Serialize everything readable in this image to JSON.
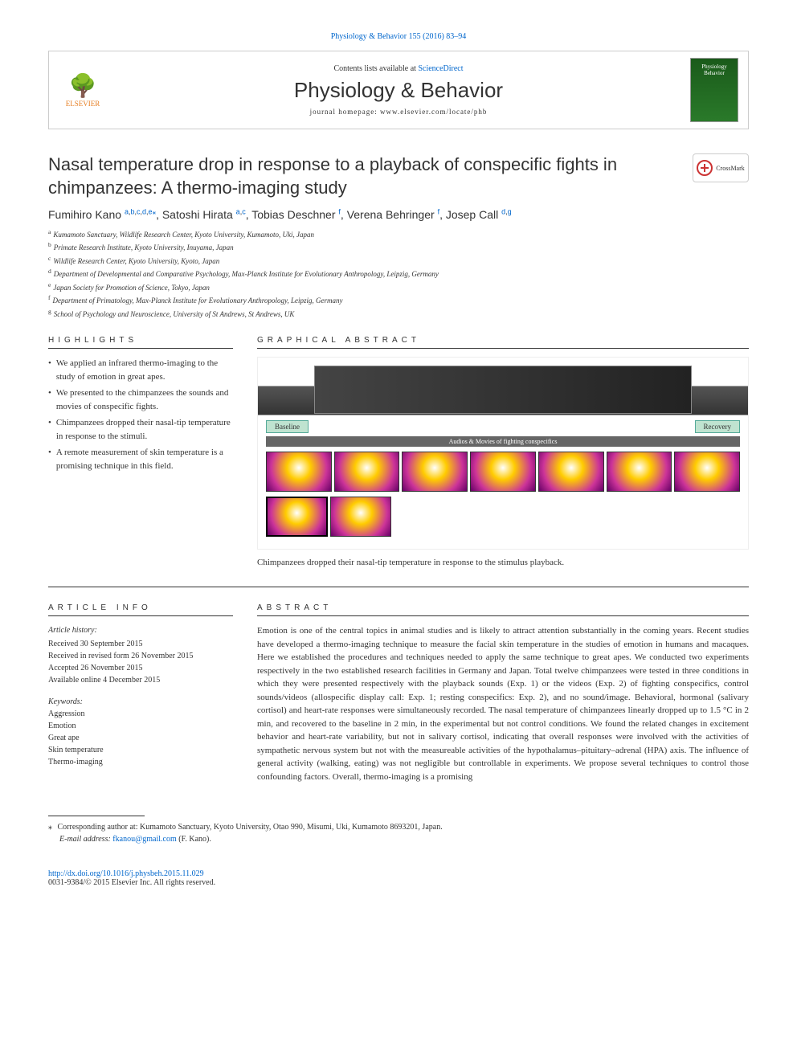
{
  "journal_ref": "Physiology & Behavior 155 (2016) 83–94",
  "header": {
    "contents_prefix": "Contents lists available at ",
    "contents_link": "ScienceDirect",
    "journal_name": "Physiology & Behavior",
    "homepage_prefix": "journal homepage: ",
    "homepage_url": "www.elsevier.com/locate/phb",
    "publisher_name": "ELSEVIER",
    "cover_text": "Physiology Behavior"
  },
  "article": {
    "title": "Nasal temperature drop in response to a playback of conspecific fights in chimpanzees: A thermo-imaging study",
    "crossmark": "CrossMark"
  },
  "authors": [
    {
      "name": "Fumihiro Kano ",
      "aff": "a,b,c,d,e,",
      "corr": "⁎"
    },
    {
      "name": ", Satoshi Hirata ",
      "aff": "a,c",
      "corr": ""
    },
    {
      "name": ", Tobias Deschner ",
      "aff": "f",
      "corr": ""
    },
    {
      "name": ", Verena Behringer ",
      "aff": "f",
      "corr": ""
    },
    {
      "name": ", Josep Call ",
      "aff": "d,g",
      "corr": ""
    }
  ],
  "affiliations": [
    {
      "sup": "a",
      "text": "Kumamoto Sanctuary, Wildlife Research Center, Kyoto University, Kumamoto, Uki, Japan"
    },
    {
      "sup": "b",
      "text": "Primate Research Institute, Kyoto University, Inuyama, Japan"
    },
    {
      "sup": "c",
      "text": "Wildlife Research Center, Kyoto University, Kyoto, Japan"
    },
    {
      "sup": "d",
      "text": "Department of Developmental and Comparative Psychology, Max-Planck Institute for Evolutionary Anthropology, Leipzig, Germany"
    },
    {
      "sup": "e",
      "text": "Japan Society for Promotion of Science, Tokyo, Japan"
    },
    {
      "sup": "f",
      "text": "Department of Primatology, Max-Planck Institute for Evolutionary Anthropology, Leipzig, Germany"
    },
    {
      "sup": "g",
      "text": "School of Psychology and Neuroscience, University of St Andrews, St Andrews, UK"
    }
  ],
  "sections": {
    "highlights": "HIGHLIGHTS",
    "graphical_abstract": "GRAPHICAL ABSTRACT",
    "article_info": "ARTICLE INFO",
    "abstract": "ABSTRACT"
  },
  "highlights": [
    "We applied an infrared thermo-imaging to the study of emotion in great apes.",
    "We presented to the chimpanzees the sounds and movies of conspecific fights.",
    "Chimpanzees dropped their nasal-tip temperature in response to the stimuli.",
    "A remote measurement of skin temperature is a promising technique in this field."
  ],
  "graphical_abstract": {
    "label_baseline": "Baseline",
    "label_recovery": "Recovery",
    "mid_text": "Audios & Movies of fighting conspecifics",
    "caption": "Chimpanzees dropped their nasal-tip temperature in response to the stimulus playback."
  },
  "article_info": {
    "history_title": "Article history:",
    "received": "Received 30 September 2015",
    "revised": "Received in revised form 26 November 2015",
    "accepted": "Accepted 26 November 2015",
    "online": "Available online 4 December 2015",
    "keywords_title": "Keywords:",
    "keywords": [
      "Aggression",
      "Emotion",
      "Great ape",
      "Skin temperature",
      "Thermo-imaging"
    ]
  },
  "abstract_text": "Emotion is one of the central topics in animal studies and is likely to attract attention substantially in the coming years. Recent studies have developed a thermo-imaging technique to measure the facial skin temperature in the studies of emotion in humans and macaques. Here we established the procedures and techniques needed to apply the same technique to great apes. We conducted two experiments respectively in the two established research facilities in Germany and Japan. Total twelve chimpanzees were tested in three conditions in which they were presented respectively with the playback sounds (Exp. 1) or the videos (Exp. 2) of fighting conspecifics, control sounds/videos (allospecific display call: Exp. 1; resting conspecifics: Exp. 2), and no sound/image. Behavioral, hormonal (salivary cortisol) and heart-rate responses were simultaneously recorded. The nasal temperature of chimpanzees linearly dropped up to 1.5 °C in 2 min, and recovered to the baseline in 2 min, in the experimental but not control conditions. We found the related changes in excitement behavior and heart-rate variability, but not in salivary cortisol, indicating that overall responses were involved with the activities of sympathetic nervous system but not with the measureable activities of the hypothalamus–pituitary–adrenal (HPA) axis. The influence of general activity (walking, eating) was not negligible but controllable in experiments. We propose several techniques to control those confounding factors. Overall, thermo-imaging is a promising",
  "corresponding": {
    "marker": "⁎",
    "label": "Corresponding author at: ",
    "text": "Kumamoto Sanctuary, Kyoto University, Otao 990, Misumi, Uki, Kumamoto 8693201, Japan.",
    "email_label": "E-mail address: ",
    "email": "fkanou@gmail.com",
    "email_suffix": " (F. Kano)."
  },
  "doi": {
    "url": "http://dx.doi.org/10.1016/j.physbeh.2015.11.029",
    "issn_line": "0031-9384/© 2015 Elsevier Inc. All rights reserved."
  },
  "colors": {
    "link": "#0066cc",
    "highlight_box": "#bfe3d0"
  }
}
